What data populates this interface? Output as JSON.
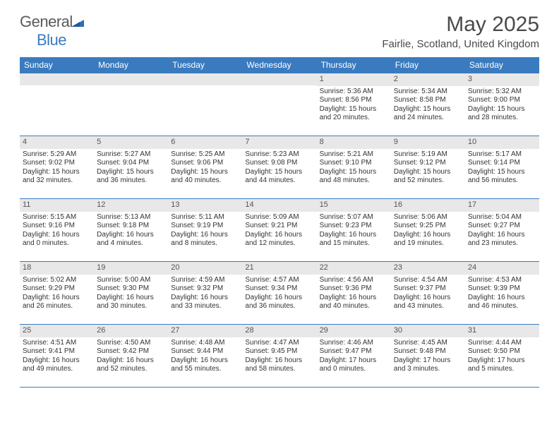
{
  "logo": {
    "general": "General",
    "blue": "Blue"
  },
  "title": "May 2025",
  "location": "Fairlie, Scotland, United Kingdom",
  "colors": {
    "header_bg": "#3a7bbf",
    "header_text": "#ffffff",
    "daynum_bg": "#e8e8e8",
    "border": "#3a7bbf",
    "text": "#333333",
    "logo_gray": "#5a5a5a",
    "logo_blue": "#3a7bbf"
  },
  "day_names": [
    "Sunday",
    "Monday",
    "Tuesday",
    "Wednesday",
    "Thursday",
    "Friday",
    "Saturday"
  ],
  "weeks": [
    [
      {
        "n": "",
        "sr": "",
        "ss": "",
        "dl": ""
      },
      {
        "n": "",
        "sr": "",
        "ss": "",
        "dl": ""
      },
      {
        "n": "",
        "sr": "",
        "ss": "",
        "dl": ""
      },
      {
        "n": "",
        "sr": "",
        "ss": "",
        "dl": ""
      },
      {
        "n": "1",
        "sr": "Sunrise: 5:36 AM",
        "ss": "Sunset: 8:56 PM",
        "dl": "Daylight: 15 hours and 20 minutes."
      },
      {
        "n": "2",
        "sr": "Sunrise: 5:34 AM",
        "ss": "Sunset: 8:58 PM",
        "dl": "Daylight: 15 hours and 24 minutes."
      },
      {
        "n": "3",
        "sr": "Sunrise: 5:32 AM",
        "ss": "Sunset: 9:00 PM",
        "dl": "Daylight: 15 hours and 28 minutes."
      }
    ],
    [
      {
        "n": "4",
        "sr": "Sunrise: 5:29 AM",
        "ss": "Sunset: 9:02 PM",
        "dl": "Daylight: 15 hours and 32 minutes."
      },
      {
        "n": "5",
        "sr": "Sunrise: 5:27 AM",
        "ss": "Sunset: 9:04 PM",
        "dl": "Daylight: 15 hours and 36 minutes."
      },
      {
        "n": "6",
        "sr": "Sunrise: 5:25 AM",
        "ss": "Sunset: 9:06 PM",
        "dl": "Daylight: 15 hours and 40 minutes."
      },
      {
        "n": "7",
        "sr": "Sunrise: 5:23 AM",
        "ss": "Sunset: 9:08 PM",
        "dl": "Daylight: 15 hours and 44 minutes."
      },
      {
        "n": "8",
        "sr": "Sunrise: 5:21 AM",
        "ss": "Sunset: 9:10 PM",
        "dl": "Daylight: 15 hours and 48 minutes."
      },
      {
        "n": "9",
        "sr": "Sunrise: 5:19 AM",
        "ss": "Sunset: 9:12 PM",
        "dl": "Daylight: 15 hours and 52 minutes."
      },
      {
        "n": "10",
        "sr": "Sunrise: 5:17 AM",
        "ss": "Sunset: 9:14 PM",
        "dl": "Daylight: 15 hours and 56 minutes."
      }
    ],
    [
      {
        "n": "11",
        "sr": "Sunrise: 5:15 AM",
        "ss": "Sunset: 9:16 PM",
        "dl": "Daylight: 16 hours and 0 minutes."
      },
      {
        "n": "12",
        "sr": "Sunrise: 5:13 AM",
        "ss": "Sunset: 9:18 PM",
        "dl": "Daylight: 16 hours and 4 minutes."
      },
      {
        "n": "13",
        "sr": "Sunrise: 5:11 AM",
        "ss": "Sunset: 9:19 PM",
        "dl": "Daylight: 16 hours and 8 minutes."
      },
      {
        "n": "14",
        "sr": "Sunrise: 5:09 AM",
        "ss": "Sunset: 9:21 PM",
        "dl": "Daylight: 16 hours and 12 minutes."
      },
      {
        "n": "15",
        "sr": "Sunrise: 5:07 AM",
        "ss": "Sunset: 9:23 PM",
        "dl": "Daylight: 16 hours and 15 minutes."
      },
      {
        "n": "16",
        "sr": "Sunrise: 5:06 AM",
        "ss": "Sunset: 9:25 PM",
        "dl": "Daylight: 16 hours and 19 minutes."
      },
      {
        "n": "17",
        "sr": "Sunrise: 5:04 AM",
        "ss": "Sunset: 9:27 PM",
        "dl": "Daylight: 16 hours and 23 minutes."
      }
    ],
    [
      {
        "n": "18",
        "sr": "Sunrise: 5:02 AM",
        "ss": "Sunset: 9:29 PM",
        "dl": "Daylight: 16 hours and 26 minutes."
      },
      {
        "n": "19",
        "sr": "Sunrise: 5:00 AM",
        "ss": "Sunset: 9:30 PM",
        "dl": "Daylight: 16 hours and 30 minutes."
      },
      {
        "n": "20",
        "sr": "Sunrise: 4:59 AM",
        "ss": "Sunset: 9:32 PM",
        "dl": "Daylight: 16 hours and 33 minutes."
      },
      {
        "n": "21",
        "sr": "Sunrise: 4:57 AM",
        "ss": "Sunset: 9:34 PM",
        "dl": "Daylight: 16 hours and 36 minutes."
      },
      {
        "n": "22",
        "sr": "Sunrise: 4:56 AM",
        "ss": "Sunset: 9:36 PM",
        "dl": "Daylight: 16 hours and 40 minutes."
      },
      {
        "n": "23",
        "sr": "Sunrise: 4:54 AM",
        "ss": "Sunset: 9:37 PM",
        "dl": "Daylight: 16 hours and 43 minutes."
      },
      {
        "n": "24",
        "sr": "Sunrise: 4:53 AM",
        "ss": "Sunset: 9:39 PM",
        "dl": "Daylight: 16 hours and 46 minutes."
      }
    ],
    [
      {
        "n": "25",
        "sr": "Sunrise: 4:51 AM",
        "ss": "Sunset: 9:41 PM",
        "dl": "Daylight: 16 hours and 49 minutes."
      },
      {
        "n": "26",
        "sr": "Sunrise: 4:50 AM",
        "ss": "Sunset: 9:42 PM",
        "dl": "Daylight: 16 hours and 52 minutes."
      },
      {
        "n": "27",
        "sr": "Sunrise: 4:48 AM",
        "ss": "Sunset: 9:44 PM",
        "dl": "Daylight: 16 hours and 55 minutes."
      },
      {
        "n": "28",
        "sr": "Sunrise: 4:47 AM",
        "ss": "Sunset: 9:45 PM",
        "dl": "Daylight: 16 hours and 58 minutes."
      },
      {
        "n": "29",
        "sr": "Sunrise: 4:46 AM",
        "ss": "Sunset: 9:47 PM",
        "dl": "Daylight: 17 hours and 0 minutes."
      },
      {
        "n": "30",
        "sr": "Sunrise: 4:45 AM",
        "ss": "Sunset: 9:48 PM",
        "dl": "Daylight: 17 hours and 3 minutes."
      },
      {
        "n": "31",
        "sr": "Sunrise: 4:44 AM",
        "ss": "Sunset: 9:50 PM",
        "dl": "Daylight: 17 hours and 5 minutes."
      }
    ]
  ]
}
